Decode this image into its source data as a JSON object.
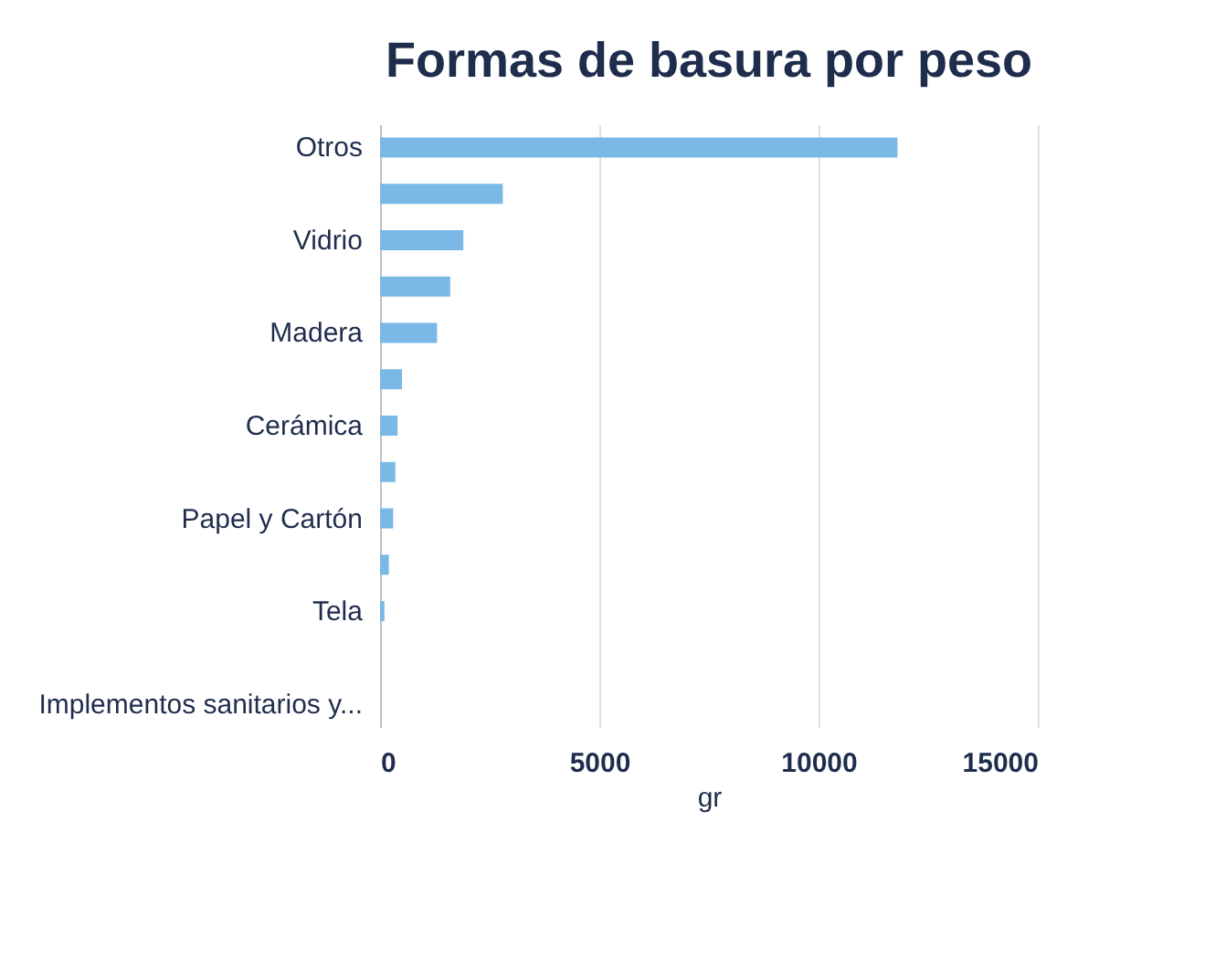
{
  "chart_data": {
    "type": "bar",
    "orientation": "horizontal",
    "title": "Formas de basura por peso",
    "xlabel": "gr",
    "categories": [
      "Otros",
      null,
      "Vidrio",
      null,
      "Madera",
      null,
      "Cerámica",
      null,
      "Papel y Cartón",
      null,
      "Tela",
      null,
      "Implementos sanitarios y..."
    ],
    "values": [
      11800,
      2800,
      1900,
      1600,
      1300,
      500,
      400,
      350,
      300,
      200,
      100,
      0,
      0
    ],
    "color": "#7ab8e6",
    "xlim": [
      0,
      15000
    ],
    "xticks": [
      0,
      5000,
      10000,
      15000
    ],
    "grid": "x"
  }
}
